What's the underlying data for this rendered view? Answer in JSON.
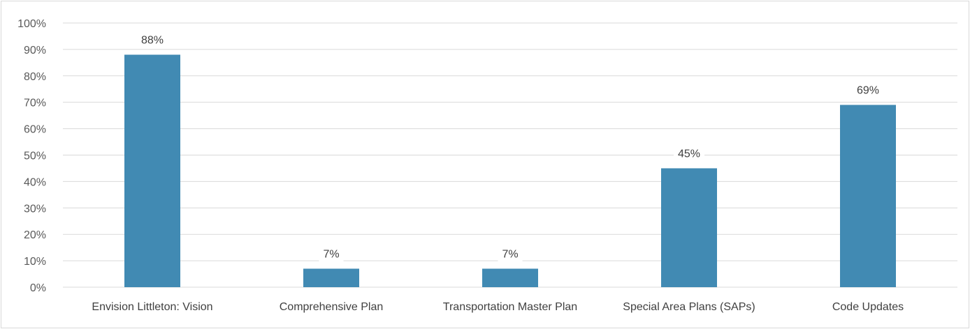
{
  "chart_data": {
    "type": "bar",
    "title": "",
    "xlabel": "",
    "ylabel": "",
    "categories": [
      "Envision Littleton: Vision",
      "Comprehensive Plan",
      "Transportation Master Plan",
      "Special Area Plans (SAPs)",
      "Code Updates"
    ],
    "values": [
      88,
      7,
      7,
      45,
      69
    ],
    "data_labels": [
      "88%",
      "7%",
      "7%",
      "45%",
      "69%"
    ],
    "ylim": [
      0,
      100
    ],
    "yticks": [
      0,
      10,
      20,
      30,
      40,
      50,
      60,
      70,
      80,
      90,
      100
    ],
    "ytick_labels": [
      "0%",
      "10%",
      "20%",
      "30%",
      "40%",
      "50%",
      "60%",
      "70%",
      "80%",
      "90%",
      "100%"
    ],
    "grid": true,
    "legend": "none",
    "bar_color": "#418ab3"
  }
}
